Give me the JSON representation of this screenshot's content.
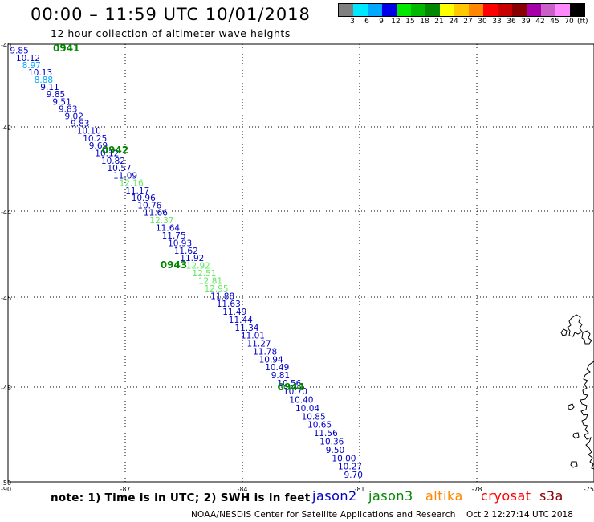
{
  "title": "00:00 – 11:59 UTC 10/01/2018",
  "subtitle": "12 hour collection of altimeter wave heights",
  "legend": {
    "unit": "(ft)",
    "colors": [
      "#808080",
      "#00e8ff",
      "#00a8ff",
      "#0000e8",
      "#00e800",
      "#00b800",
      "#008800",
      "#ffff00",
      "#ffc800",
      "#ff8800",
      "#ff0000",
      "#c80000",
      "#880000",
      "#a800a8",
      "#c860c8",
      "#ff88ff",
      "#000000"
    ],
    "labels": [
      "3",
      "6",
      "9",
      "12",
      "15",
      "18",
      "21",
      "24",
      "27",
      "30",
      "33",
      "36",
      "39",
      "42",
      "45",
      "70"
    ]
  },
  "axes": {
    "lat_labels": [
      "-40",
      "-42",
      "-44",
      "-46",
      "-48",
      "-50"
    ],
    "lon_labels": [
      "-90",
      "-87",
      "-84",
      "-81",
      "-78",
      "-75"
    ]
  },
  "chart_data": {
    "type": "map-track",
    "lat_range": [
      -40,
      -50
    ],
    "lon_range": [
      -90,
      -75
    ],
    "grid": "dotted",
    "color_key": {
      "jason2": "#0000c8",
      "jason3": "#008800",
      "altika": "#ff8800",
      "cryosat": "#ff0000",
      "s3a": "#880000"
    },
    "time_labels": [
      {
        "text": "0941",
        "lat": -40.1,
        "lon": -88.85
      },
      {
        "text": "0942",
        "lat": -42.55,
        "lon": -87.6
      },
      {
        "text": "0943",
        "lat": -45.25,
        "lon": -86.1
      },
      {
        "text": "0944",
        "lat": -48.0,
        "lon": -83.1
      }
    ],
    "wave_heights": [
      {
        "v": "9.85",
        "c": "#0000c8"
      },
      {
        "v": "10.12",
        "c": "#0000c8"
      },
      {
        "v": "8.97",
        "c": "#00a8ff"
      },
      {
        "v": "10.13",
        "c": "#0000c8"
      },
      {
        "v": "8.88",
        "c": "#00a8ff"
      },
      {
        "v": "9.11",
        "c": "#0000c8"
      },
      {
        "v": "9.85",
        "c": "#0000c8"
      },
      {
        "v": "9.51",
        "c": "#0000c8"
      },
      {
        "v": "9.83",
        "c": "#0000c8"
      },
      {
        "v": "9.02",
        "c": "#0000c8"
      },
      {
        "v": "9.83",
        "c": "#0000c8"
      },
      {
        "v": "10.10",
        "c": "#0000c8"
      },
      {
        "v": "10.25",
        "c": "#0000c8"
      },
      {
        "v": "9.69",
        "c": "#0000c8"
      },
      {
        "v": "10.12",
        "c": "#0000c8"
      },
      {
        "v": "10.82",
        "c": "#0000c8"
      },
      {
        "v": "10.57",
        "c": "#0000c8"
      },
      {
        "v": "11.09",
        "c": "#0000c8"
      },
      {
        "v": "12.16",
        "c": "#60e860"
      },
      {
        "v": "11.17",
        "c": "#0000c8"
      },
      {
        "v": "10.96",
        "c": "#0000c8"
      },
      {
        "v": "10.76",
        "c": "#0000c8"
      },
      {
        "v": "11.66",
        "c": "#0000c8"
      },
      {
        "v": "12.37",
        "c": "#60e860"
      },
      {
        "v": "11.64",
        "c": "#0000c8"
      },
      {
        "v": "11.75",
        "c": "#0000c8"
      },
      {
        "v": "10.93",
        "c": "#0000c8"
      },
      {
        "v": "11.62",
        "c": "#0000c8"
      },
      {
        "v": "11.92",
        "c": "#0000c8"
      },
      {
        "v": "12.92",
        "c": "#60e860"
      },
      {
        "v": "12.51",
        "c": "#60e860"
      },
      {
        "v": "12.81",
        "c": "#60e860"
      },
      {
        "v": "12.95",
        "c": "#60e860"
      },
      {
        "v": "11.88",
        "c": "#0000c8"
      },
      {
        "v": "11.63",
        "c": "#0000c8"
      },
      {
        "v": "11.49",
        "c": "#0000c8"
      },
      {
        "v": "11.44",
        "c": "#0000c8"
      },
      {
        "v": "11.34",
        "c": "#0000c8"
      },
      {
        "v": "11.01",
        "c": "#0000c8"
      },
      {
        "v": "11.27",
        "c": "#0000c8"
      },
      {
        "v": "11.78",
        "c": "#0000c8"
      },
      {
        "v": "10.94",
        "c": "#0000c8"
      },
      {
        "v": "10.49",
        "c": "#0000c8"
      },
      {
        "v": "9.81",
        "c": "#0000c8"
      },
      {
        "v": "10.56",
        "c": "#0000c8"
      },
      {
        "v": "10.70",
        "c": "#0000c8"
      },
      {
        "v": "10.40",
        "c": "#0000c8"
      },
      {
        "v": "10.04",
        "c": "#0000c8"
      },
      {
        "v": "10.85",
        "c": "#0000c8"
      },
      {
        "v": "10.65",
        "c": "#0000c8"
      },
      {
        "v": "11.56",
        "c": "#0000c8"
      },
      {
        "v": "10.36",
        "c": "#0000c8"
      },
      {
        "v": "9.50",
        "c": "#0000c8"
      },
      {
        "v": "10.00",
        "c": "#0000c8"
      },
      {
        "v": "10.27",
        "c": "#0000c8"
      },
      {
        "v": "9.70",
        "c": "#0000c8"
      }
    ]
  },
  "footer": {
    "note": "note: 1) Time is in UTC; 2) SWH is in feet",
    "satellites": [
      {
        "name": "jason2",
        "color": "#0000c8"
      },
      {
        "name": "jason3",
        "color": "#008800"
      },
      {
        "name": "altika",
        "color": "#ff8800"
      },
      {
        "name": "cryosat",
        "color": "#ff0000"
      },
      {
        "name": "s3a",
        "color": "#880000"
      }
    ],
    "credit": "NOAA/NESDIS Center for Satellite Applications and Research",
    "timestamp": "Oct  2 12:27:14 UTC 2018"
  }
}
